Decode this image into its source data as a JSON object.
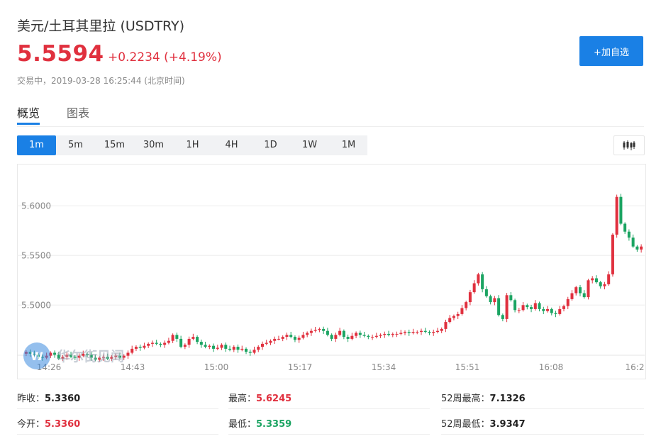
{
  "header": {
    "title": "美元/土耳其里拉  (USDTRY)",
    "price": "5.5594",
    "change": "+0.2234 (+4.19%)",
    "status": "交易中，2019-03-28 16:25:44 (北京时间)",
    "add_watchlist": "+加自选"
  },
  "tabs": [
    {
      "label": "概览",
      "active": true
    },
    {
      "label": "图表",
      "active": false
    }
  ],
  "periods": [
    {
      "label": "1m",
      "active": true
    },
    {
      "label": "5m",
      "active": false
    },
    {
      "label": "15m",
      "active": false
    },
    {
      "label": "30m",
      "active": false
    },
    {
      "label": "1H",
      "active": false
    },
    {
      "label": "4H",
      "active": false
    },
    {
      "label": "1D",
      "active": false
    },
    {
      "label": "1W",
      "active": false
    },
    {
      "label": "1M",
      "active": false
    }
  ],
  "chart_type_icon": "candlestick-icon",
  "watermark": "华尔街见闻",
  "colors": {
    "up": "#e0303e",
    "down": "#1ba462",
    "accent": "#1a80e5"
  },
  "stats": {
    "prev_close": {
      "label": "昨收：",
      "value": "5.3360"
    },
    "high": {
      "label": "最高：",
      "value": "5.6245"
    },
    "week52_high": {
      "label": "52周最高：",
      "value": "7.1326"
    },
    "open": {
      "label": "今开：",
      "value": "5.3360"
    },
    "low": {
      "label": "最低：",
      "value": "5.3359"
    },
    "week52_low": {
      "label": "52周最低：",
      "value": "3.9347"
    }
  },
  "chart_data": {
    "type": "candlestick",
    "ylabels": [
      "5.6000",
      "5.5500",
      "5.5000"
    ],
    "yticks": [
      5.6,
      5.55,
      5.5
    ],
    "xlabels": [
      "14:26",
      "14:43",
      "15:00",
      "15:17",
      "15:34",
      "15:51",
      "16:08",
      "16:2"
    ],
    "ylim": [
      5.4495,
      5.6395
    ],
    "grid": true,
    "closes": [
      5.453,
      5.451,
      5.45,
      5.448,
      5.447,
      5.449,
      5.452,
      5.45,
      5.446,
      5.448,
      5.45,
      5.448,
      5.447,
      5.449,
      5.451,
      5.45,
      5.447,
      5.445,
      5.447,
      5.448,
      5.446,
      5.448,
      5.449,
      5.447,
      5.449,
      5.452,
      5.456,
      5.458,
      5.457,
      5.459,
      5.461,
      5.462,
      5.461,
      5.46,
      5.462,
      5.464,
      5.47,
      5.466,
      5.458,
      5.46,
      5.466,
      5.468,
      5.463,
      5.46,
      5.458,
      5.459,
      5.456,
      5.457,
      5.46,
      5.456,
      5.455,
      5.458,
      5.455,
      5.456,
      5.453,
      5.452,
      5.455,
      5.458,
      5.461,
      5.462,
      5.464,
      5.466,
      5.466,
      5.468,
      5.47,
      5.468,
      5.465,
      5.467,
      5.47,
      5.472,
      5.474,
      5.475,
      5.476,
      5.474,
      5.47,
      5.466,
      5.47,
      5.474,
      5.468,
      5.466,
      5.469,
      5.472,
      5.47,
      5.469,
      5.468,
      5.468,
      5.469,
      5.47,
      5.471,
      5.47,
      5.471,
      5.471,
      5.472,
      5.473,
      5.472,
      5.473,
      5.473,
      5.474,
      5.473,
      5.472,
      5.473,
      5.474,
      5.476,
      5.483,
      5.487,
      5.489,
      5.491,
      5.497,
      5.503,
      5.513,
      5.522,
      5.531,
      5.516,
      5.509,
      5.503,
      5.507,
      5.49,
      5.486,
      5.51,
      5.505,
      5.495,
      5.495,
      5.5,
      5.498,
      5.496,
      5.502,
      5.496,
      5.494,
      5.496,
      5.492,
      5.491,
      5.496,
      5.499,
      5.506,
      5.512,
      5.518,
      5.512,
      5.508,
      5.525,
      5.527,
      5.523,
      5.519,
      5.521,
      5.531,
      5.571,
      5.609,
      5.582,
      5.574,
      5.568,
      5.559,
      5.556,
      5.559
    ]
  }
}
